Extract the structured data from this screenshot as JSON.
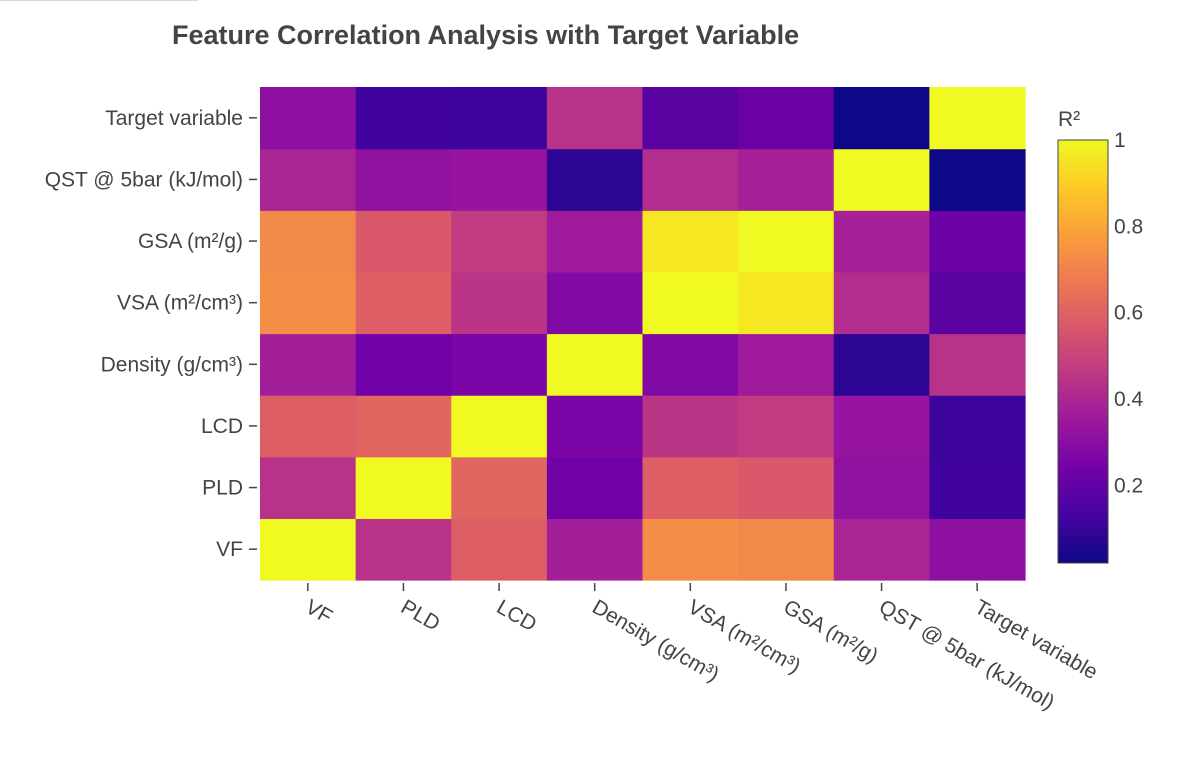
{
  "chart_data": {
    "type": "heatmap",
    "title": "Feature Correlation Analysis with Target Variable",
    "x_categories": [
      "VF",
      "PLD",
      "LCD",
      "Density (g/cm³)",
      "VSA (m²/cm³)",
      "GSA (m²/g)",
      "QST @ 5bar (kJ/mol)",
      "Target variable"
    ],
    "y_categories": [
      "VF",
      "PLD",
      "LCD",
      "Density (g/cm³)",
      "VSA (m²/cm³)",
      "GSA (m²/g)",
      "QST @ 5bar (kJ/mol)",
      "Target variable"
    ],
    "z": [
      [
        1.0,
        0.44,
        0.59,
        0.37,
        0.73,
        0.72,
        0.39,
        0.31
      ],
      [
        0.44,
        1.0,
        0.61,
        0.23,
        0.59,
        0.57,
        0.32,
        0.12
      ],
      [
        0.59,
        0.61,
        1.0,
        0.26,
        0.45,
        0.47,
        0.33,
        0.11
      ],
      [
        0.37,
        0.23,
        0.26,
        1.0,
        0.28,
        0.36,
        0.08,
        0.44
      ],
      [
        0.73,
        0.59,
        0.45,
        0.28,
        1.0,
        0.96,
        0.42,
        0.18
      ],
      [
        0.72,
        0.57,
        0.47,
        0.36,
        0.96,
        1.0,
        0.38,
        0.22
      ],
      [
        0.39,
        0.32,
        0.33,
        0.08,
        0.42,
        0.38,
        1.0,
        0.02
      ],
      [
        0.31,
        0.12,
        0.11,
        0.44,
        0.18,
        0.22,
        0.02,
        1.0
      ]
    ],
    "colorscale": "Plasma",
    "colorbar": {
      "title": "R²",
      "range": [
        0.02,
        1
      ],
      "tickvals": [
        0.2,
        0.4,
        0.6,
        0.8,
        1
      ],
      "ticktext": [
        "0.2",
        "0.4",
        "0.6",
        "0.8",
        "1"
      ]
    },
    "grid": false,
    "legend": "right"
  }
}
